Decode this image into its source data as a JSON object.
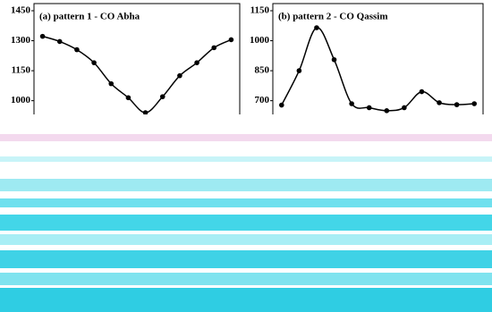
{
  "chart_data": [
    {
      "type": "line",
      "title": "(a) pattern 1  - CO Abha",
      "categories": [
        null,
        null,
        null,
        null,
        null,
        null,
        null,
        null,
        null,
        null,
        null,
        null
      ],
      "values": [
        1322,
        1296,
        1255,
        1190,
        1085,
        1015,
        940,
        1020,
        1125,
        1190,
        1265,
        1305
      ],
      "color": "#000000",
      "ylim": [
        900,
        1450
      ],
      "yticks": [
        1000,
        1150,
        1300,
        1450
      ]
    },
    {
      "type": "line",
      "title": "(b) pattern 2 - CO Qassim",
      "categories": [
        null,
        null,
        null,
        null,
        null,
        null,
        null,
        null,
        null,
        null,
        null,
        null
      ],
      "values": [
        678,
        850,
        1065,
        905,
        685,
        665,
        650,
        665,
        745,
        690,
        680,
        685
      ],
      "color": "#000000",
      "ylim": [
        600,
        1150
      ],
      "yticks": [
        700,
        850,
        1000,
        1150
      ]
    }
  ]
}
